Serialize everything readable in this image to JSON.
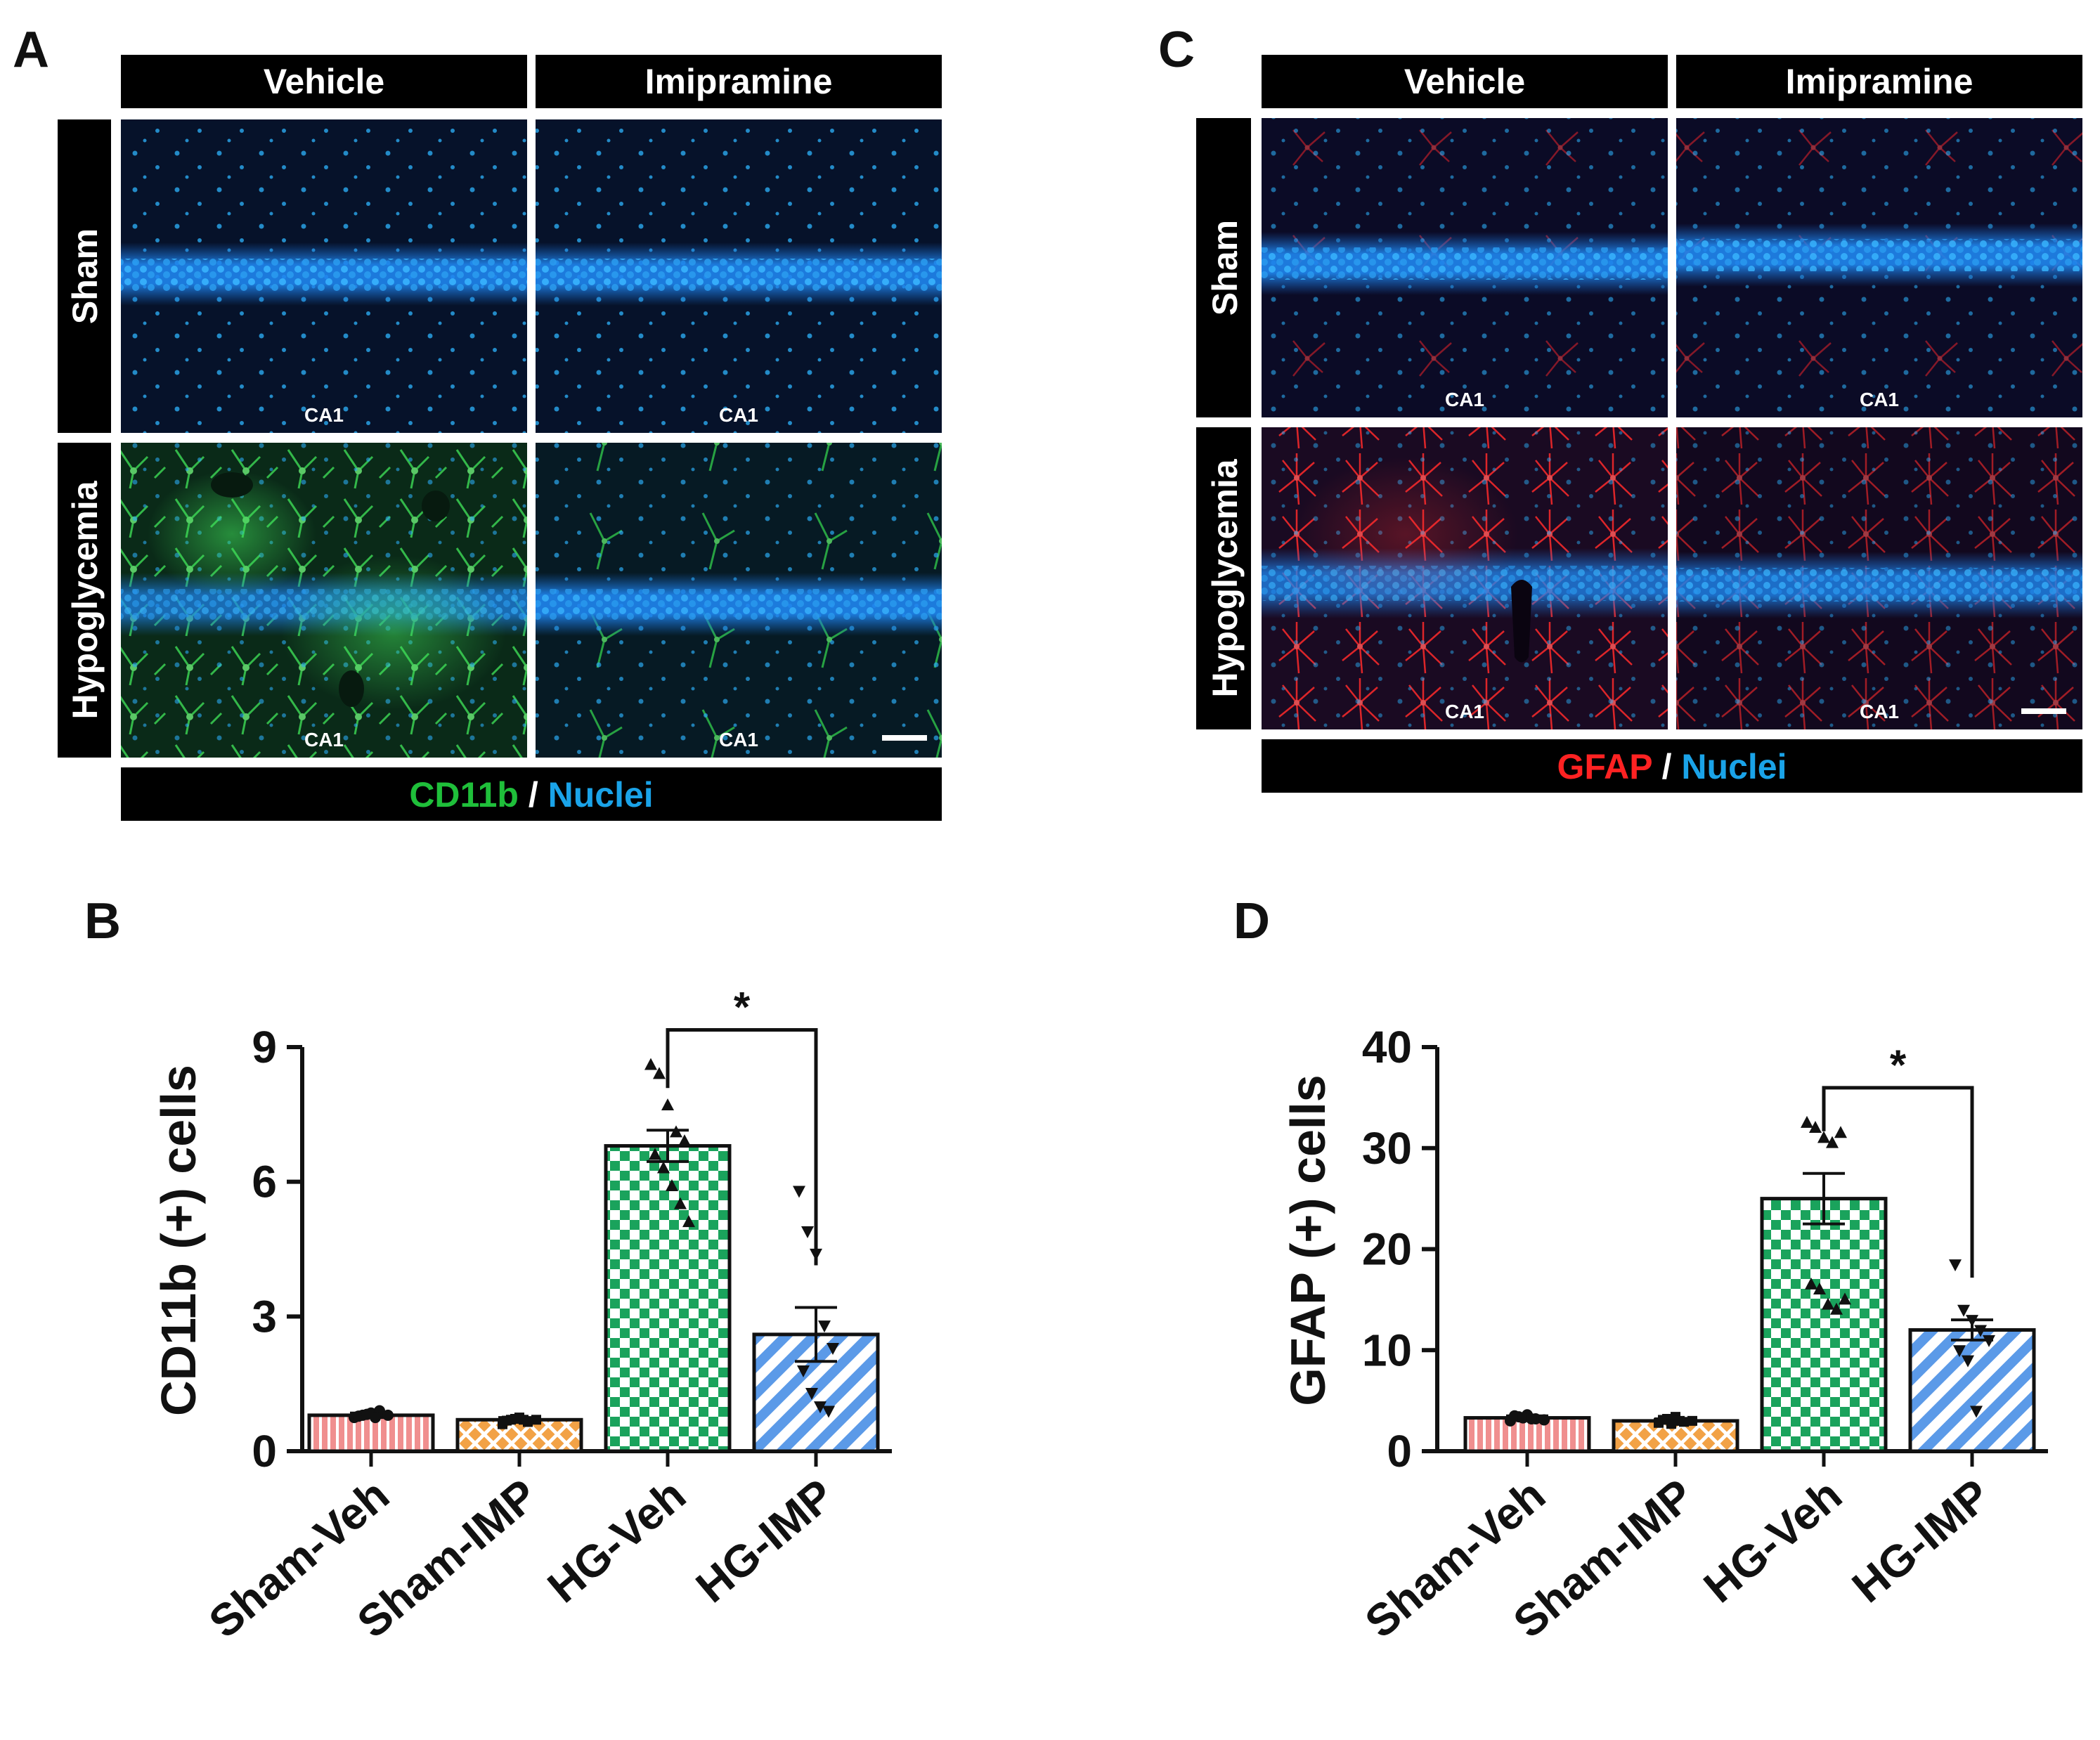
{
  "panels": {
    "A": {
      "letter": "A",
      "columns": [
        "Vehicle",
        "Imipramine"
      ],
      "rows": [
        "Sham",
        "Hypoglycemia"
      ],
      "region_label": "CA1",
      "legend": {
        "marker": "CD11b",
        "separator": " / ",
        "nuclei": "Nuclei",
        "marker_color": "#1fbf3a",
        "nuclei_color": "#1aa3e8"
      }
    },
    "C": {
      "letter": "C",
      "columns": [
        "Vehicle",
        "Imipramine"
      ],
      "rows": [
        "Sham",
        "Hypoglycemia"
      ],
      "region_label": "CA1",
      "legend": {
        "marker": "GFAP",
        "separator": " / ",
        "nuclei": "Nuclei",
        "marker_color": "#ff2222",
        "nuclei_color": "#1aa3e8"
      }
    },
    "B": {
      "letter": "B"
    },
    "D": {
      "letter": "D"
    }
  },
  "chart_data": [
    {
      "panel": "B",
      "type": "bar",
      "title": "",
      "ylabel": "CD11b (+) cells",
      "xlabel": "",
      "categories": [
        "Sham-Veh",
        "Sham-IMP",
        "HG-Veh",
        "HG-IMP"
      ],
      "values": [
        0.8,
        0.7,
        6.8,
        2.6
      ],
      "sem": [
        0.05,
        0.05,
        0.35,
        0.6
      ],
      "ylim": [
        0,
        9
      ],
      "yticks": [
        0,
        3,
        6,
        9
      ],
      "points": [
        [
          0.75,
          0.8,
          0.85,
          0.9,
          0.8,
          0.78,
          0.82,
          0.75
        ],
        [
          0.6,
          0.7,
          0.75,
          0.65,
          0.7,
          0.68,
          0.72,
          0.7
        ],
        [
          8.6,
          8.4,
          7.7,
          7.1,
          6.9,
          6.6,
          6.3,
          5.9,
          5.5,
          5.1
        ],
        [
          5.8,
          4.9,
          4.4,
          2.8,
          2.3,
          1.8,
          1.3,
          1.0,
          0.9
        ]
      ],
      "point_markers": [
        "circle",
        "square",
        "triangle-up",
        "triangle-down"
      ],
      "significance": {
        "between": [
          "HG-Veh",
          "HG-IMP"
        ],
        "label": "*"
      },
      "colors": [
        "#f08f8f",
        "#f2a246",
        "#1aa35c",
        "#5b9ae8"
      ]
    },
    {
      "panel": "D",
      "type": "bar",
      "title": "",
      "ylabel": "GFAP (+) cells",
      "xlabel": "",
      "categories": [
        "Sham-Veh",
        "Sham-IMP",
        "HG-Veh",
        "HG-IMP"
      ],
      "values": [
        3.3,
        3.0,
        25.0,
        12.0
      ],
      "sem": [
        0.2,
        0.2,
        2.5,
        1.0
      ],
      "ylim": [
        0,
        40
      ],
      "yticks": [
        0,
        10,
        20,
        30,
        40
      ],
      "points": [
        [
          3.0,
          3.4,
          3.6,
          3.2,
          3.1,
          3.5,
          3.3,
          3.2
        ],
        [
          2.8,
          3.2,
          3.4,
          2.9,
          3.0,
          3.1,
          2.7,
          3.0
        ],
        [
          32.5,
          32.0,
          31.0,
          30.5,
          31.5,
          16.5,
          16.0,
          14.5,
          14.0,
          15.0
        ],
        [
          18.5,
          14.0,
          13.0,
          12.0,
          11.0,
          10.0,
          9.0,
          4.0
        ]
      ],
      "point_markers": [
        "circle",
        "square",
        "triangle-up",
        "triangle-down"
      ],
      "significance": {
        "between": [
          "HG-Veh",
          "HG-IMP"
        ],
        "label": "*"
      },
      "colors": [
        "#f08f8f",
        "#f2a246",
        "#1aa35c",
        "#5b9ae8"
      ]
    }
  ]
}
